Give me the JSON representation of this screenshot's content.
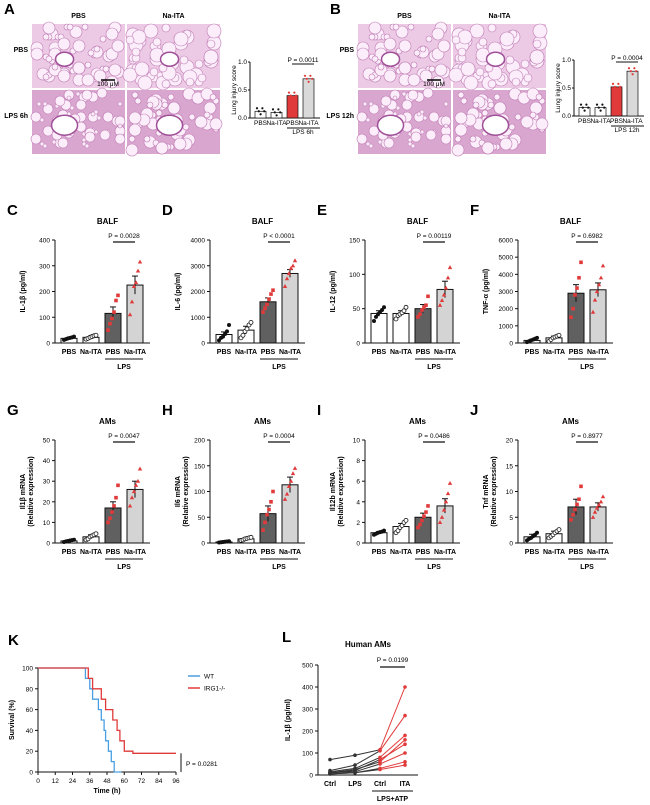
{
  "A": {
    "letter": "A",
    "col_labels": [
      "PBS",
      "Na-ITA"
    ],
    "row_labels": [
      "PBS",
      "LPS 6h"
    ],
    "scale_bar": "100 μM",
    "chart": {
      "ylabel": "Lung injury score",
      "categories": [
        "PBS",
        "Na-ITA",
        "PBS",
        "Na-ITA"
      ],
      "values": [
        0.12,
        0.1,
        0.4,
        0.7
      ],
      "group_label": "LPS 6h",
      "pvalue": "P = 0.0011"
    }
  },
  "B": {
    "letter": "B",
    "col_labels": [
      "PBS",
      "Na-ITA"
    ],
    "row_labels": [
      "PBS",
      "LPS 12h"
    ],
    "scale_bar": "100 μM",
    "chart": {
      "ylabel": "Lung injury score",
      "categories": [
        "PBS",
        "Na-ITA",
        "PBS",
        "Na-ITA"
      ],
      "values": [
        0.15,
        0.15,
        0.52,
        0.8
      ],
      "group_label": "LPS 12h",
      "pvalue": "P = 0.0004"
    }
  },
  "chart_data": [
    {
      "id": "C",
      "type": "bar",
      "title": "BALF",
      "ylabel": "IL-1β (pg/ml)",
      "categories": [
        "PBS",
        "Na-ITA",
        "PBS",
        "Na-ITA"
      ],
      "group_label": "LPS",
      "values": [
        18,
        22,
        115,
        225
      ],
      "errors": [
        3,
        5,
        25,
        35
      ],
      "ylim": [
        0,
        400
      ],
      "yticks": [
        0,
        100,
        200,
        300,
        400
      ],
      "pvalue": "P = 0.0028",
      "points": [
        [
          12,
          15,
          18,
          20,
          22,
          25
        ],
        [
          15,
          18,
          22,
          25,
          28,
          30
        ],
        [
          50,
          75,
          95,
          120,
          165,
          185
        ],
        [
          110,
          160,
          220,
          235,
          280,
          315
        ]
      ]
    },
    {
      "id": "D",
      "type": "bar",
      "title": "BALF",
      "ylabel": "IL-6 (pg/ml)",
      "categories": [
        "PBS",
        "Na-ITA",
        "PBS",
        "Na-ITA"
      ],
      "group_label": "LPS",
      "values": [
        330,
        500,
        1600,
        2700
      ],
      "errors": [
        100,
        150,
        150,
        150
      ],
      "ylim": [
        0,
        4000
      ],
      "yticks": [
        0,
        1000,
        2000,
        3000,
        4000
      ],
      "pvalue": "P < 0.0001",
      "points": [
        [
          100,
          200,
          250,
          350,
          450,
          700
        ],
        [
          200,
          300,
          450,
          550,
          700,
          800
        ],
        [
          1200,
          1350,
          1500,
          1700,
          1900,
          2050
        ],
        [
          2200,
          2500,
          2700,
          2900,
          3000,
          3200
        ]
      ]
    },
    {
      "id": "E",
      "type": "bar",
      "title": "BALF",
      "ylabel": "IL-12 (pg/ml)",
      "categories": [
        "PBS",
        "Na-ITA",
        "PBS",
        "Na-ITA"
      ],
      "group_label": "LPS",
      "values": [
        43,
        43,
        50,
        78
      ],
      "errors": [
        4,
        4,
        6,
        12
      ],
      "ylim": [
        0,
        150
      ],
      "yticks": [
        0,
        50,
        100,
        150
      ],
      "pvalue": "P = 0.00119",
      "points": [
        [
          32,
          38,
          42,
          45,
          48,
          52
        ],
        [
          35,
          40,
          42,
          44,
          47,
          52
        ],
        [
          38,
          42,
          48,
          52,
          55,
          68
        ],
        [
          55,
          62,
          70,
          80,
          95,
          110
        ]
      ]
    },
    {
      "id": "F",
      "type": "bar",
      "title": "BALF",
      "ylabel": "TNF-α (pg/ml)",
      "categories": [
        "PBS",
        "Na-ITA",
        "PBS",
        "Na-ITA"
      ],
      "group_label": "LPS",
      "values": [
        150,
        300,
        2900,
        3100
      ],
      "errors": [
        60,
        100,
        500,
        400
      ],
      "ylim": [
        0,
        6000
      ],
      "yticks": [
        0,
        1000,
        2000,
        3000,
        4000,
        5000,
        6000
      ],
      "pvalue": "P = 0.6982",
      "points": [
        [
          50,
          100,
          150,
          200,
          250,
          300
        ],
        [
          100,
          200,
          300,
          350,
          400,
          450
        ],
        [
          1500,
          2000,
          2800,
          3200,
          3800,
          4700
        ],
        [
          1800,
          2500,
          3000,
          3400,
          3800,
          4500
        ]
      ]
    },
    {
      "id": "G",
      "type": "bar",
      "title": "AMs",
      "ylabel": "Il1β mRNA (Relative expression)",
      "categories": [
        "PBS",
        "Na-ITA",
        "PBS",
        "Na-ITA"
      ],
      "group_label": "LPS",
      "values": [
        1,
        3,
        17,
        26
      ],
      "errors": [
        0.5,
        1,
        3,
        4
      ],
      "ylim": [
        0,
        50
      ],
      "yticks": [
        0,
        10,
        20,
        30,
        40,
        50
      ],
      "pvalue": "P = 0.0047",
      "points": [
        [
          0.5,
          0.8,
          1,
          1.2,
          1.4,
          1.6
        ],
        [
          1.5,
          2,
          3,
          3.5,
          4,
          4.5
        ],
        [
          10,
          12,
          15,
          18,
          22,
          28
        ],
        [
          18,
          22,
          25,
          28,
          30,
          36
        ]
      ]
    },
    {
      "id": "H",
      "type": "bar",
      "title": "AMs",
      "ylabel": "Il6 mRNA (Relative expression)",
      "categories": [
        "PBS",
        "Na-ITA",
        "PBS",
        "Na-ITA"
      ],
      "group_label": "LPS",
      "values": [
        2,
        8,
        57,
        113
      ],
      "errors": [
        1,
        2,
        15,
        15
      ],
      "ylim": [
        0,
        200
      ],
      "yticks": [
        0,
        50,
        100,
        150,
        200
      ],
      "pvalue": "P = 0.0004",
      "points": [
        [
          1,
          1.5,
          2,
          2.5,
          3,
          3.5
        ],
        [
          5,
          6,
          8,
          9,
          10,
          11
        ],
        [
          25,
          40,
          55,
          65,
          80,
          100
        ],
        [
          85,
          95,
          110,
          120,
          135,
          145
        ]
      ]
    },
    {
      "id": "I",
      "type": "bar",
      "title": "AMs",
      "ylabel": "Il12b mRNA (Relative expression)",
      "categories": [
        "PBS",
        "Na-ITA",
        "PBS",
        "Na-ITA"
      ],
      "group_label": "LPS",
      "values": [
        1,
        1.6,
        2.5,
        3.6
      ],
      "errors": [
        0.1,
        0.3,
        0.4,
        0.7
      ],
      "ylim": [
        0,
        10
      ],
      "yticks": [
        0,
        2,
        4,
        6,
        8,
        10
      ],
      "pvalue": "P = 0.0486",
      "points": [
        [
          0.8,
          0.9,
          1,
          1.05,
          1.1,
          1.2
        ],
        [
          1,
          1.2,
          1.5,
          1.7,
          2,
          2.2
        ],
        [
          1.5,
          1.8,
          2.2,
          2.6,
          3,
          3.6
        ],
        [
          2,
          2.5,
          3.2,
          4,
          4.8,
          5.8
        ]
      ]
    },
    {
      "id": "J",
      "type": "bar",
      "title": "AMs",
      "ylabel": "Tnf mRNA (Relative expression)",
      "categories": [
        "PBS",
        "Na-ITA",
        "PBS",
        "Na-ITA"
      ],
      "group_label": "LPS",
      "values": [
        1.2,
        1.8,
        7,
        7
      ],
      "errors": [
        0.5,
        0.5,
        1.5,
        0.8
      ],
      "ylim": [
        0,
        20
      ],
      "yticks": [
        0,
        5,
        10,
        15,
        20
      ],
      "pvalue": "P = 0.8977",
      "points": [
        [
          0.5,
          0.8,
          1,
          1.3,
          1.6,
          2
        ],
        [
          1,
          1.3,
          1.6,
          2,
          2.3,
          2.6
        ],
        [
          4.5,
          5.5,
          6.5,
          7.5,
          8.5,
          11
        ],
        [
          5,
          6,
          6.8,
          7.4,
          8,
          9
        ]
      ]
    },
    {
      "id": "K",
      "type": "line",
      "ylabel": "Survival (%)",
      "xlabel": "Time (h)",
      "xticks": [
        0,
        12,
        24,
        36,
        48,
        60,
        72,
        84,
        96
      ],
      "yticks": [
        0,
        20,
        40,
        60,
        80,
        100
      ],
      "xlim": [
        0,
        96
      ],
      "ylim": [
        0,
        100
      ],
      "pvalue": "P = 0.0281",
      "series": [
        {
          "name": "WT",
          "color": "#4a9fe0",
          "steps": [
            [
              0,
              100
            ],
            [
              33,
              100
            ],
            [
              33,
              90
            ],
            [
              36,
              90
            ],
            [
              36,
              80
            ],
            [
              38,
              80
            ],
            [
              38,
              70
            ],
            [
              42,
              70
            ],
            [
              42,
              60
            ],
            [
              44,
              60
            ],
            [
              44,
              50
            ],
            [
              46,
              50
            ],
            [
              46,
              40
            ],
            [
              47,
              40
            ],
            [
              47,
              30
            ],
            [
              49,
              30
            ],
            [
              49,
              20
            ],
            [
              51,
              20
            ],
            [
              51,
              10
            ],
            [
              53,
              10
            ],
            [
              53,
              0
            ],
            [
              58,
              0
            ]
          ]
        },
        {
          "name": "IRG1-/-",
          "color": "#e03a3a",
          "steps": [
            [
              0,
              100
            ],
            [
              35,
              100
            ],
            [
              35,
              90
            ],
            [
              38,
              90
            ],
            [
              38,
              80
            ],
            [
              44,
              80
            ],
            [
              44,
              70
            ],
            [
              47,
              70
            ],
            [
              47,
              60
            ],
            [
              52,
              60
            ],
            [
              52,
              50
            ],
            [
              55,
              50
            ],
            [
              55,
              40
            ],
            [
              57,
              40
            ],
            [
              57,
              30
            ],
            [
              60,
              30
            ],
            [
              60,
              20
            ],
            [
              66,
              20
            ],
            [
              66,
              18
            ],
            [
              96,
              18
            ]
          ]
        }
      ]
    },
    {
      "id": "L",
      "type": "line",
      "title": "Human AMs",
      "ylabel": "IL-1β (pg/ml)",
      "categories": [
        "Ctrl",
        "LPS",
        "Ctrl",
        "ITA"
      ],
      "group_label": "LPS+ATP",
      "ylim": [
        0,
        500
      ],
      "yticks": [
        0,
        100,
        200,
        300,
        400,
        500
      ],
      "pvalue": "P = 0.0199",
      "series_values": [
        [
          70,
          90,
          115,
          400
        ],
        [
          20,
          45,
          110,
          270
        ],
        [
          15,
          30,
          80,
          180
        ],
        [
          10,
          25,
          60,
          160
        ],
        [
          10,
          20,
          70,
          140
        ],
        [
          10,
          15,
          50,
          100
        ],
        [
          5,
          10,
          30,
          60
        ],
        [
          5,
          10,
          25,
          45
        ]
      ]
    }
  ]
}
